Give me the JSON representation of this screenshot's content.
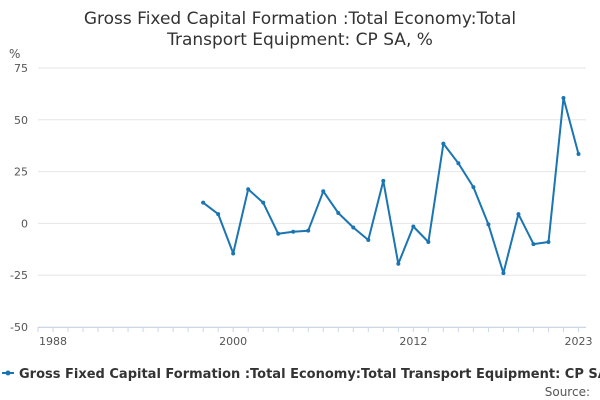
{
  "chart_data": {
    "type": "line",
    "title_lines": [
      "Gross Fixed Capital Formation :Total Economy:Total",
      "Transport Equipment: CP SA, %"
    ],
    "ylabel": "%",
    "ylim": [
      -50,
      75
    ],
    "yticks": [
      75,
      50,
      25,
      0,
      -25,
      -50
    ],
    "xlim": [
      1987,
      2023.5
    ],
    "xticks": [
      1988,
      2000,
      2012,
      2023
    ],
    "grid": "horizontal",
    "legend_position": "bottom",
    "color": "#1a75b2",
    "series": [
      {
        "name": "Gross Fixed Capital Formation :Total Economy:Total Transport Equipment: CP SA, %",
        "x": [
          1998,
          1999,
          2000,
          2001,
          2002,
          2003,
          2004,
          2005,
          2006,
          2007,
          2008,
          2009,
          2010,
          2011,
          2012,
          2013,
          2014,
          2015,
          2016,
          2017,
          2018,
          2019,
          2020,
          2021,
          2022,
          2023
        ],
        "values": [
          10,
          4.5,
          -14.5,
          16.5,
          10,
          -5,
          -4,
          -3.5,
          15.5,
          5,
          -2,
          -8,
          20.5,
          -19.5,
          -1.5,
          -9,
          38.5,
          29,
          17.5,
          -0.5,
          -24,
          4.5,
          -10,
          -9,
          60.5,
          33.5
        ]
      }
    ]
  },
  "footer": {
    "source_label": "Source:"
  }
}
